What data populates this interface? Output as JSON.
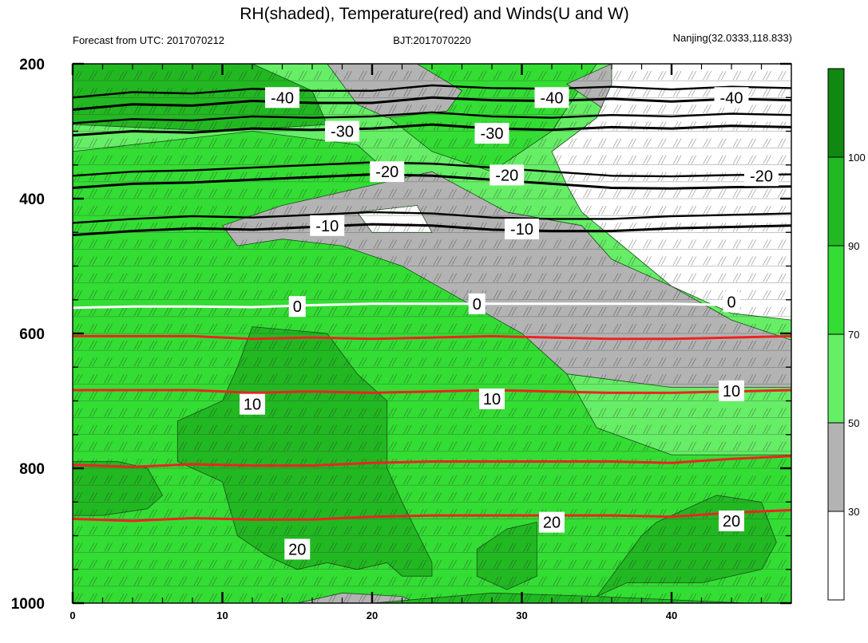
{
  "title": "RH(shaded), Temperature(red) and Winds(U and W)",
  "subtitle_left": "Forecast from UTC: 2017070212",
  "subtitle_center": "BJT:2017070220",
  "subtitle_right": "Nanjing(32.0333,118.833)",
  "colors": {
    "rh_lt30": "#ffffff",
    "rh_30_50": "#b3b3b3",
    "rh_50_70": "#66ee66",
    "rh_70_90": "#33dd33",
    "rh_90_100": "#22b822",
    "rh_ge100": "#118811",
    "temperature_line": "#ee2222",
    "freezing_line": "#ffffff",
    "cold_isotherm": "#000000"
  },
  "chart_data": {
    "type": "heatmap",
    "description_of_axes": "x: forecast hour, y: pressure (hPa, reversed)",
    "xlim": [
      0,
      48
    ],
    "ylim": [
      1000,
      200
    ],
    "x_ticks": [
      "0",
      "10",
      "20",
      "30",
      "40"
    ],
    "x_tick_values": [
      0,
      10,
      20,
      30,
      40
    ],
    "y_ticks": [
      "200",
      "400",
      "600",
      "800",
      "1000"
    ],
    "y_tick_values": [
      200,
      400,
      600,
      800,
      1000
    ],
    "colorbar": {
      "levels": [
        30,
        50,
        70,
        90,
        100
      ],
      "labels": [
        "30",
        "50",
        "70",
        "90",
        "100"
      ]
    },
    "rh_regions": [
      {
        "level": "50-70",
        "polygon": [
          [
            0,
            200
          ],
          [
            48,
            200
          ],
          [
            48,
            1000
          ],
          [
            0,
            1000
          ]
        ]
      },
      {
        "level": "70-90",
        "polygon": [
          [
            0,
            200
          ],
          [
            17,
            200
          ],
          [
            20,
            260
          ],
          [
            24,
            330
          ],
          [
            28,
            360
          ],
          [
            32,
            300
          ],
          [
            35,
            200
          ],
          [
            0,
            200
          ]
        ]
      },
      {
        "level": "70-90",
        "polygon": [
          [
            0,
            330
          ],
          [
            12,
            300
          ],
          [
            19,
            320
          ],
          [
            22,
            380
          ],
          [
            30,
            470
          ],
          [
            30,
            570
          ],
          [
            33,
            660
          ],
          [
            35,
            740
          ],
          [
            40,
            780
          ],
          [
            48,
            780
          ],
          [
            48,
            1000
          ],
          [
            0,
            1000
          ]
        ]
      },
      {
        "level": "90-100",
        "polygon": [
          [
            0,
            200
          ],
          [
            12,
            200
          ],
          [
            16,
            240
          ],
          [
            17,
            290
          ],
          [
            10,
            300
          ],
          [
            0,
            290
          ]
        ]
      },
      {
        "level": "30-50",
        "polygon": [
          [
            17,
            200
          ],
          [
            23,
            200
          ],
          [
            26,
            240
          ],
          [
            25,
            270
          ],
          [
            21,
            280
          ],
          [
            19,
            260
          ]
        ]
      },
      {
        "level": "30-50",
        "polygon": [
          [
            36,
            200
          ],
          [
            48,
            200
          ],
          [
            48,
            300
          ],
          [
            42,
            310
          ],
          [
            37,
            290
          ],
          [
            33,
            230
          ]
        ]
      },
      {
        "level": "30-50",
        "polygon": [
          [
            14,
            410
          ],
          [
            20,
            380
          ],
          [
            24,
            360
          ],
          [
            29,
            420
          ],
          [
            34,
            440
          ],
          [
            36,
            490
          ],
          [
            40,
            530
          ],
          [
            44,
            580
          ],
          [
            48,
            610
          ],
          [
            48,
            680
          ],
          [
            40,
            680
          ],
          [
            33,
            660
          ],
          [
            30,
            600
          ],
          [
            26,
            550
          ],
          [
            22,
            500
          ],
          [
            18,
            470
          ],
          [
            14,
            460
          ],
          [
            11,
            470
          ],
          [
            10,
            440
          ]
        ]
      },
      {
        "level": "30-50",
        "polygon": [
          [
            15,
            1000
          ],
          [
            18,
            985
          ],
          [
            22,
            990
          ],
          [
            23,
            1000
          ]
        ]
      },
      {
        "level": "<30",
        "polygon": [
          [
            36,
            200
          ],
          [
            48,
            200
          ],
          [
            48,
            580
          ],
          [
            44,
            570
          ],
          [
            40,
            530
          ],
          [
            34,
            420
          ],
          [
            33,
            380
          ],
          [
            32,
            330
          ],
          [
            35,
            280
          ],
          [
            36,
            230
          ]
        ]
      },
      {
        "level": "<30",
        "polygon": [
          [
            19,
            420
          ],
          [
            23,
            410
          ],
          [
            24,
            450
          ],
          [
            20,
            450
          ]
        ]
      },
      {
        "level": "90-100",
        "polygon": [
          [
            12,
            590
          ],
          [
            17,
            600
          ],
          [
            19,
            660
          ],
          [
            21,
            700
          ],
          [
            21,
            800
          ],
          [
            22,
            850
          ],
          [
            24,
            940
          ],
          [
            24,
            960
          ],
          [
            22,
            960
          ],
          [
            21,
            940
          ],
          [
            19,
            950
          ],
          [
            17,
            940
          ],
          [
            15,
            950
          ],
          [
            13,
            930
          ],
          [
            11,
            900
          ],
          [
            10,
            820
          ],
          [
            7,
            790
          ],
          [
            7,
            730
          ],
          [
            10,
            700
          ],
          [
            11,
            650
          ]
        ]
      },
      {
        "level": "90-100",
        "polygon": [
          [
            0,
            790
          ],
          [
            3,
            790
          ],
          [
            5,
            800
          ],
          [
            6,
            840
          ],
          [
            5,
            860
          ],
          [
            2,
            870
          ],
          [
            0,
            870
          ]
        ]
      },
      {
        "level": "90-100",
        "polygon": [
          [
            27,
            920
          ],
          [
            29,
            890
          ],
          [
            31,
            880
          ],
          [
            31,
            960
          ],
          [
            29,
            980
          ],
          [
            27,
            960
          ]
        ]
      },
      {
        "level": "90-100",
        "polygon": [
          [
            39,
            880
          ],
          [
            43,
            840
          ],
          [
            46,
            850
          ],
          [
            47,
            910
          ],
          [
            46,
            950
          ],
          [
            42,
            970
          ],
          [
            37,
            970
          ],
          [
            35,
            990
          ],
          [
            38,
            900
          ]
        ]
      },
      {
        "level": "90-100",
        "polygon": [
          [
            20,
            1000
          ],
          [
            28,
            985
          ],
          [
            35,
            990
          ],
          [
            45,
            1000
          ]
        ]
      }
    ],
    "temperature_isotherms": [
      {
        "value": -40,
        "label": "-40",
        "y": [
          268,
          260,
          262,
          255,
          258,
          258,
          250,
          254,
          255,
          252,
          256,
          252,
          254
        ]
      },
      {
        "value": -30,
        "label": "-30",
        "y": [
          306,
          300,
          302,
          296,
          298,
          296,
          290,
          296,
          298,
          294,
          296,
          292,
          294
        ]
      },
      {
        "value": -20,
        "label": "-20",
        "y": [
          384,
          378,
          376,
          372,
          368,
          364,
          366,
          372,
          378,
          384,
          385,
          383,
          382
        ]
      },
      {
        "value": -10,
        "label": "-10",
        "y": [
          454,
          448,
          444,
          446,
          442,
          438,
          440,
          446,
          448,
          448,
          444,
          442,
          440
        ]
      },
      {
        "value": 0,
        "label": "0",
        "y": [
          562,
          560,
          560,
          561,
          558,
          556,
          556,
          556,
          556,
          556,
          556,
          558,
          556
        ]
      },
      {
        "value": 10,
        "label": "10",
        "y": [
          684,
          684,
          684,
          688,
          686,
          688,
          686,
          684,
          686,
          688,
          688,
          686,
          684
        ]
      },
      {
        "value": 20,
        "label": "20",
        "y": [
          875,
          878,
          874,
          876,
          876,
          872,
          870,
          870,
          870,
          870,
          872,
          866,
          862
        ]
      }
    ],
    "x_grid": [
      0,
      4,
      8,
      12,
      16,
      20,
      24,
      28,
      32,
      36,
      40,
      44,
      48
    ],
    "temperature_labels": [
      {
        "label": "-40",
        "x": 14,
        "y": 250
      },
      {
        "label": "-40",
        "x": 32,
        "y": 250
      },
      {
        "label": "-40",
        "x": 44,
        "y": 250
      },
      {
        "label": "-30",
        "x": 18,
        "y": 300
      },
      {
        "label": "-30",
        "x": 28,
        "y": 303
      },
      {
        "label": "-20",
        "x": 21,
        "y": 360
      },
      {
        "label": "-20",
        "x": 29,
        "y": 365
      },
      {
        "label": "-20",
        "x": 46,
        "y": 366
      },
      {
        "label": "-10",
        "x": 17,
        "y": 440
      },
      {
        "label": "-10",
        "x": 30,
        "y": 445
      },
      {
        "label": "0",
        "x": 15,
        "y": 560
      },
      {
        "label": "0",
        "x": 27,
        "y": 556
      },
      {
        "label": "0",
        "x": 44,
        "y": 553
      },
      {
        "label": "10",
        "x": 12,
        "y": 705
      },
      {
        "label": "10",
        "x": 28,
        "y": 697
      },
      {
        "label": "10",
        "x": 44,
        "y": 685
      },
      {
        "label": "20",
        "x": 15,
        "y": 920
      },
      {
        "label": "20",
        "x": 32,
        "y": 880
      },
      {
        "label": "20",
        "x": 44,
        "y": 878
      }
    ]
  }
}
